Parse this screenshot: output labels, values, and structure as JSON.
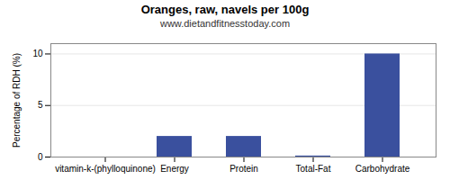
{
  "chart_data": {
    "type": "bar",
    "title": "Oranges, raw, navels per 100g",
    "subtitle": "www.dietandfitnesstoday.com",
    "categories": [
      "vitamin-k-(phylloquinone)",
      "Energy",
      "Protein",
      "Total-Fat",
      "Carbohydrate"
    ],
    "values": [
      0,
      2.0,
      2.0,
      0.1,
      10.0
    ],
    "color": "#3a509e",
    "ylabel": "Percentage of RDH (%)",
    "ylim": [
      0,
      11
    ],
    "yticks": [
      0,
      5,
      10
    ],
    "grid": true
  }
}
